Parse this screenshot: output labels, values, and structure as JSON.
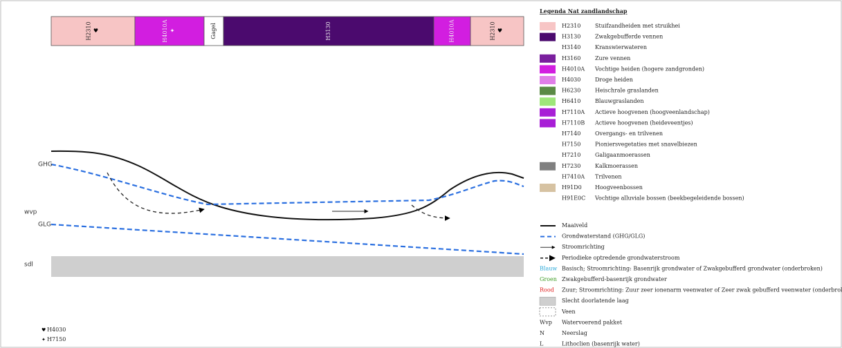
{
  "bar_segments": [
    {
      "code": "H2310",
      "symbol": "♥"
    },
    {
      "code": "H4010A",
      "symbol": "✦"
    },
    {
      "code": "Gagel"
    },
    {
      "code": "H3130"
    },
    {
      "code": "H4010A"
    },
    {
      "code": "H2310",
      "symbol": "♥"
    }
  ],
  "profile_labels": {
    "ghg": "GHG",
    "wvp": "wvp",
    "glg": "GLG",
    "sdl": "sdl"
  },
  "symbol_notes": [
    {
      "symbol": "♥",
      "code": "H4030"
    },
    {
      "symbol": "✦",
      "code": "H7150"
    }
  ],
  "legend": {
    "title": "Legenda Nat zandlandschap",
    "habitats": [
      {
        "code": "H2310",
        "text": "Stuifzandheiden met struikhei",
        "color": "#f7c5c5"
      },
      {
        "code": "H3130",
        "text": "Zwakgebufferde vennen",
        "color": "#4b0a6e"
      },
      {
        "code": "H3140",
        "text": "Kranswierwateren"
      },
      {
        "code": "H3160",
        "text": "Zure vennen",
        "color": "#7a1f9e"
      },
      {
        "code": "H4010A",
        "text": "Vochtige heiden (hogere zandgronden)",
        "color": "#d21ee0"
      },
      {
        "code": "H4030",
        "text": "Droge heiden",
        "color": "#e07ee8"
      },
      {
        "code": "H6230",
        "text": "Heischrale graslanden",
        "color": "#5a8a45"
      },
      {
        "code": "H6410",
        "text": "Blauwgraslanden",
        "color": "#9ee67a"
      },
      {
        "code": "H7110A",
        "text": "Actieve hoogvenen (hoogveenlandschap)",
        "color": "#a81fd6"
      },
      {
        "code": "H7110B",
        "text": "Actieve hoogvenen (heideveentjes)",
        "color": "#a81fd6"
      },
      {
        "code": "H7140",
        "text": "Overgangs- en trilvenen"
      },
      {
        "code": "H7150",
        "text": "Pioniersvegetaties met snavelbiezen"
      },
      {
        "code": "H7210",
        "text": "Galigaanmoerassen"
      },
      {
        "code": "H7230",
        "text": "Kalkmoerassen",
        "color": "#808080"
      },
      {
        "code": "H7410A",
        "text": "Trilvenen"
      },
      {
        "code": "H91D0",
        "text": "Hoogveenbossen",
        "color": "#d6c2a2"
      },
      {
        "code": "H91E0C",
        "text": "Vochtige alluviale bossen (beekbegeleidende bossen)"
      }
    ],
    "symbols": [
      {
        "text": "Maaiveld"
      },
      {
        "text": "Grondwaterstand (GHG/GLG)"
      },
      {
        "text": "Stroomrichting"
      },
      {
        "text": "Periodieke optredende grondwaterstroom"
      },
      {
        "key": "Blauw",
        "text": "Basisch; Stroomrichting: Basenrijk grondwater of Zwakgebufferd grondwater (onderbroken)"
      },
      {
        "key": "Groen",
        "text": "Zwakgebufferd-basenrijk grondwater"
      },
      {
        "key": "Rood",
        "text": "Zuur; Stroomrichting: Zuur zeer ionenarm veenwater of Zeer zwak gebufferd veenwater (onderbroken)"
      },
      {
        "text": "Slecht doorlatende laag"
      },
      {
        "text": "Veen"
      },
      {
        "key": "Wvp",
        "text": "Watervoerend pakket"
      },
      {
        "key": "N",
        "text": "Neerslag"
      },
      {
        "key": "L",
        "text": "Lithoclien (basenrijk water)"
      }
    ]
  }
}
